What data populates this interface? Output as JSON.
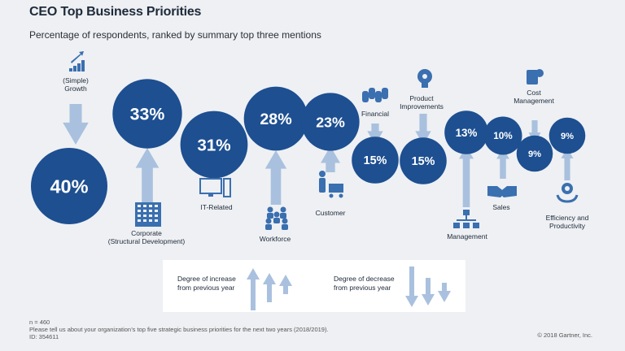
{
  "header": {
    "title": "CEO Top Business Priorities",
    "subtitle": "Percentage of respondents, ranked by summary top three mentions"
  },
  "colors": {
    "circle": "#1d4f91",
    "arrow": "#a9c1de",
    "icon": "#3a6fb0",
    "background": "#eef0f3"
  },
  "chart_data": {
    "type": "bubble",
    "title": "CEO Top Business Priorities",
    "subtitle": "Percentage of respondents, ranked by summary top three mentions",
    "categories": [
      "(Simple) Growth",
      "Corporate (Structural Development)",
      "IT-Related",
      "Workforce",
      "Customer",
      "Financial",
      "Product Improvements",
      "Management",
      "Sales",
      "Cost Management",
      "Efficiency and Productivity"
    ],
    "values": [
      40,
      33,
      31,
      28,
      23,
      15,
      15,
      13,
      10,
      9,
      9
    ],
    "value_labels": [
      "40%",
      "33%",
      "31%",
      "28%",
      "23%",
      "15%",
      "15%",
      "13%",
      "10%",
      "9%",
      "9%"
    ],
    "direction": [
      "down",
      "up",
      "none",
      "up",
      "up",
      "down",
      "down",
      "up",
      "up",
      "down",
      "up"
    ],
    "icons": [
      "bar-growth-icon",
      "building-icon",
      "computer-icon",
      "people-group-icon",
      "shopping-cart-icon",
      "coins-icon",
      "lightbulb-head-icon",
      "org-chart-icon",
      "handshake-icon",
      "money-list-icon",
      "gear-hands-icon"
    ],
    "label_lines": [
      [
        "(Simple)",
        "Growth"
      ],
      [
        "Corporate",
        "(Structural Development)"
      ],
      [
        "IT-Related"
      ],
      [
        "Workforce"
      ],
      [
        "Customer"
      ],
      [
        "Financial"
      ],
      [
        "Product",
        "Improvements"
      ],
      [
        "Management"
      ],
      [
        "Sales"
      ],
      [
        "Cost",
        "Management"
      ],
      [
        "Efficiency and",
        "Productivity"
      ]
    ]
  },
  "legend": {
    "increase_label_1": "Degree of increase",
    "increase_label_2": "from previous year",
    "decrease_label_1": "Degree of decrease",
    "decrease_label_2": "from previous year"
  },
  "footer": {
    "n": "n = 460",
    "question": "Please tell us about your organization’s top five strategic business priorities for the next two years (2018/2019).",
    "id": "ID: 354611",
    "copyright": "© 2018 Gartner, Inc."
  }
}
